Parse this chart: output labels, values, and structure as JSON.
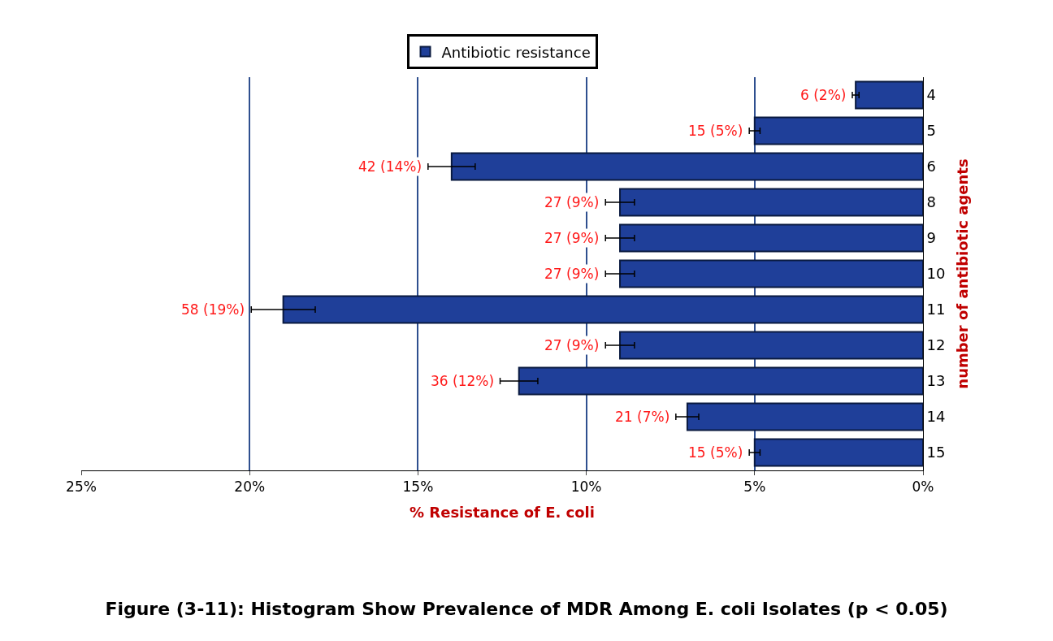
{
  "chart_data": {
    "type": "bar",
    "orientation": "horizontal",
    "title": "Figure (3-11): Histogram Show Prevalence of MDR Among E. coli Isolates (p < 0.05)",
    "xlabel": "% Resistance of E. coli",
    "ylabel": "number of antibiotic agents",
    "categories": [
      "4",
      "5",
      "6",
      "8",
      "9",
      "10",
      "11",
      "12",
      "13",
      "14",
      "15"
    ],
    "series": [
      {
        "name": "Antibiotic resistance",
        "color": "#1f3f99",
        "values": [
          2,
          5,
          14,
          9,
          9,
          9,
          19,
          9,
          12,
          7,
          5
        ],
        "errors": [
          0.1,
          0.16,
          0.7,
          0.43,
          0.43,
          0.43,
          0.95,
          0.43,
          0.56,
          0.34,
          0.16
        ],
        "value_labels": [
          "6 (2%)",
          "15 (5%)",
          "42 (14%)",
          "27 (9%)",
          "27 (9%)",
          "27 (9%)",
          "58 (19%)",
          "27 (9%)",
          "36 (12%)",
          "21 (7%)",
          "15 (5%)"
        ]
      }
    ],
    "xlim": [
      25,
      0
    ],
    "xticks": [
      {
        "value": 25,
        "label": "25%"
      },
      {
        "value": 20,
        "label": "20%"
      },
      {
        "value": 15,
        "label": "15%"
      },
      {
        "value": 10,
        "label": "10%"
      },
      {
        "value": 5,
        "label": "5%"
      },
      {
        "value": 0,
        "label": "0%"
      }
    ],
    "grid": "x",
    "legend": "top"
  }
}
